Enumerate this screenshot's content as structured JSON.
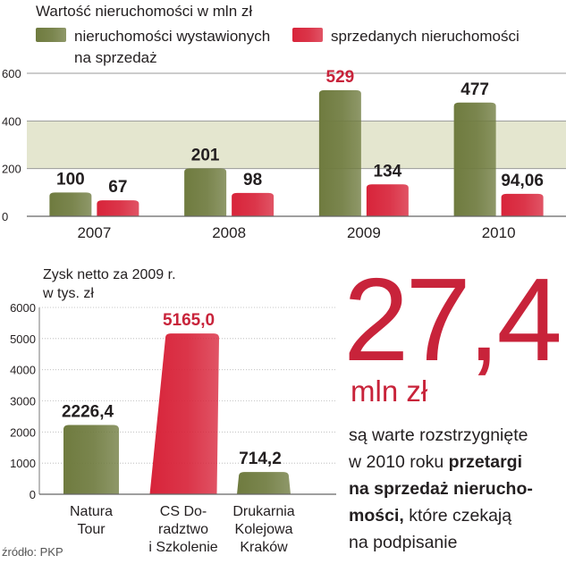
{
  "chart_data": [
    {
      "type": "bar",
      "title": "Wartość nieruchomości w mln zł",
      "categories": [
        "2007",
        "2008",
        "2009",
        "2010"
      ],
      "series": [
        {
          "name": "nieruchomości wystawionych na sprzedaż",
          "color": "#6f7b3f",
          "values": [
            100,
            201,
            529,
            477
          ],
          "labels": [
            "100",
            "201",
            "529",
            "477"
          ]
        },
        {
          "name": "sprzedanych nieruchomości",
          "color": "#d8243a",
          "values": [
            67,
            98,
            134,
            94.06
          ],
          "labels": [
            "67",
            "98",
            "134",
            "94,06"
          ]
        }
      ],
      "legend": [
        "nieruchomości wystawionych",
        "na sprzedaż",
        "sprzedanych nieruchomości"
      ],
      "ylim": [
        0,
        600
      ],
      "yticks": [
        "0",
        "200",
        "400",
        "600"
      ],
      "label_colors": [
        "#231f20",
        "#231f20",
        "#c8233a",
        "#231f20"
      ]
    },
    {
      "type": "bar",
      "title": "Zysk netto za 2009 r.",
      "subtitle": "w tys. zł",
      "categories": [
        [
          "Natura",
          "Tour"
        ],
        [
          "CS Do-",
          "radztwo",
          "i Szkolenie"
        ],
        [
          "Drukarnia",
          "Kolejowa",
          "Kraków"
        ]
      ],
      "values": [
        2226.4,
        5165.0,
        714.2
      ],
      "labels": [
        "2226,4",
        "5165,0",
        "714,2"
      ],
      "colors": [
        "#6f7b3f",
        "#d8243a",
        "#6f7b3f"
      ],
      "label_colors": [
        "#231f20",
        "#c8233a",
        "#231f20"
      ],
      "ylim": [
        0,
        6000
      ],
      "yticks": [
        "0",
        "1000",
        "2000",
        "3000",
        "4000",
        "5000",
        "6000"
      ]
    }
  ],
  "highlight": {
    "number": "27,4",
    "unit": "mln zł",
    "text_parts": [
      {
        "text": "są warte rozstrzygnięte",
        "bold": false
      },
      {
        "text": "w 2010 roku",
        "bold": false
      },
      {
        "text": "przetargi",
        "bold": true
      },
      {
        "text": "na sprzedaż nierucho-",
        "bold": true
      },
      {
        "text": "mości,",
        "bold": true
      },
      {
        "text": "które czekają",
        "bold": false
      },
      {
        "text": "na podpisanie",
        "bold": false
      }
    ]
  },
  "source": "źródło: PKP",
  "colors": {
    "green": "#6f7b3f",
    "red": "#d8243a",
    "band": "#e4e6cf",
    "grid": "#9a9a9a",
    "big_number": "#c8233a"
  }
}
